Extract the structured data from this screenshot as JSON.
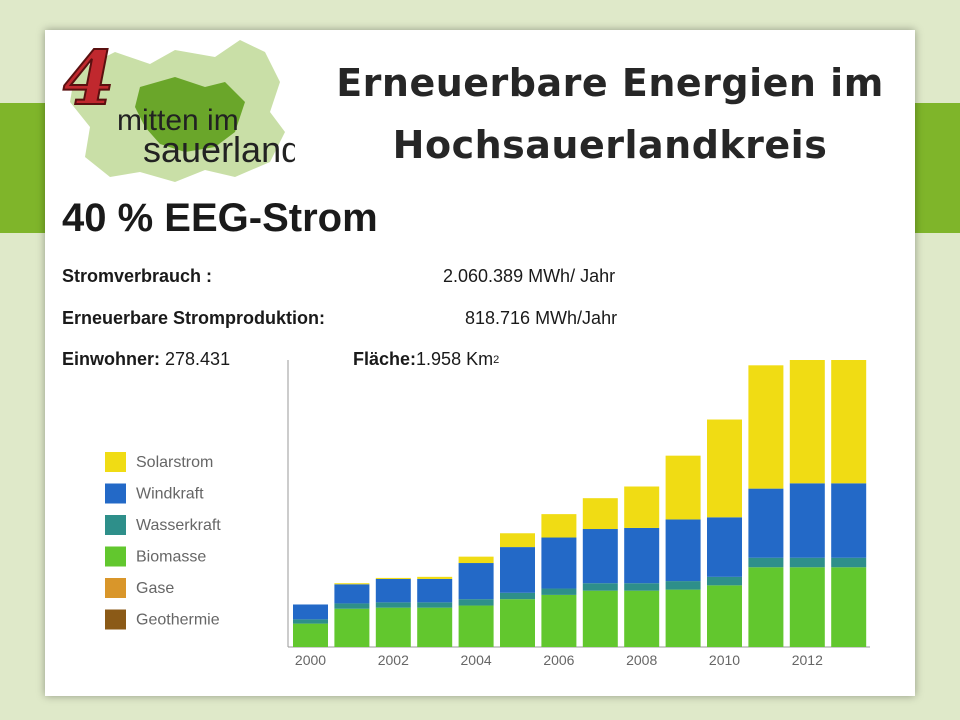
{
  "logo": {
    "number": "4",
    "line1": "mitten im",
    "line2": "sauerland"
  },
  "title": {
    "line1": "Erneuerbare Energien im",
    "line2": "Hochsauerlandkreis"
  },
  "headline": "40 % EEG-Strom",
  "stats": {
    "consumption_label": "Stromverbrauch :",
    "consumption_value": "2.060.389 MWh/ Jahr",
    "production_label": "Erneuerbare Stromproduktion:",
    "production_value": "818.716 MWh/Jahr",
    "inhabitants_label": "Einwohner:",
    "inhabitants_value": "278.431",
    "area_label": "Fläche:",
    "area_value": "1.958 Km",
    "area_sup": "2"
  },
  "colors": {
    "Solarstrom": "#f0dc14",
    "Windkraft": "#2369c7",
    "Wasserkraft": "#2e8f8a",
    "Biomasse": "#62c72e",
    "Gase": "#d9962a",
    "Geothermie": "#8b5a17"
  },
  "chart_data": {
    "type": "bar",
    "stacked": true,
    "categories": [
      "2000",
      "2001",
      "2002",
      "2003",
      "2004",
      "2005",
      "2006",
      "2007",
      "2008",
      "2009",
      "2010",
      "2011",
      "2012",
      "2013"
    ],
    "x_tick_labels": [
      "2000",
      "2002",
      "2004",
      "2006",
      "2008",
      "2010",
      "2012"
    ],
    "legend": [
      "Solarstrom",
      "Windkraft",
      "Wasserkraft",
      "Biomasse",
      "Gase",
      "Geothermie"
    ],
    "legend_position": "left",
    "series": [
      {
        "name": "Biomasse",
        "values": [
          22,
          36,
          37,
          37,
          39,
          45,
          49,
          53,
          53,
          54,
          58,
          75,
          75,
          75
        ]
      },
      {
        "name": "Wasserkraft",
        "values": [
          4,
          5,
          5,
          5,
          6,
          6,
          6,
          7,
          7,
          8,
          8,
          9,
          9,
          9
        ]
      },
      {
        "name": "Windkraft",
        "values": [
          14,
          18,
          22,
          22,
          34,
          43,
          48,
          51,
          52,
          58,
          56,
          65,
          70,
          70
        ]
      },
      {
        "name": "Solarstrom",
        "values": [
          0,
          1,
          1,
          2,
          6,
          13,
          22,
          29,
          39,
          60,
          92,
          116,
          122,
          122
        ]
      },
      {
        "name": "Gase",
        "values": [
          0,
          0,
          0,
          0,
          0,
          0,
          0,
          0,
          0,
          0,
          0,
          0,
          0,
          0
        ]
      },
      {
        "name": "Geothermie",
        "values": [
          0,
          0,
          0,
          0,
          0,
          0,
          0,
          0,
          0,
          0,
          0,
          0,
          0,
          0
        ]
      }
    ],
    "ylim": [
      0,
      270
    ],
    "grid": false,
    "y_axis_labels": false
  }
}
